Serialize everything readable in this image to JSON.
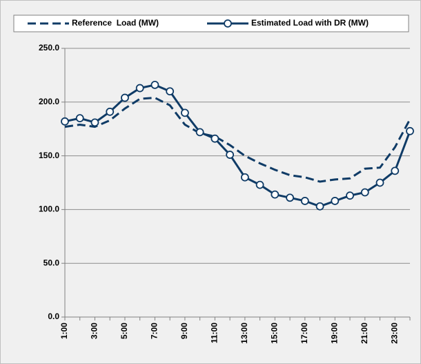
{
  "chart_data": {
    "type": "line",
    "categories": [
      "1:00",
      null,
      "3:00",
      null,
      "5:00",
      null,
      "7:00",
      null,
      "9:00",
      null,
      "11:00",
      null,
      "13:00",
      null,
      "15:00",
      null,
      "17:00",
      null,
      "19:00",
      null,
      "21:00",
      null,
      "23:00",
      null
    ],
    "series": [
      {
        "name": "Reference  Load (MW)",
        "color": "#0f3b66",
        "style": "dashed",
        "marker": "none",
        "values": [
          177,
          179,
          177,
          183,
          194,
          203,
          204,
          197,
          179,
          171,
          168,
          160,
          150,
          143,
          137,
          132,
          130,
          126,
          128,
          129,
          138,
          139,
          158,
          184
        ]
      },
      {
        "name": "Estimated Load with DR (MW)",
        "color": "#0f3b66",
        "style": "solid",
        "marker": "circle",
        "values": [
          182,
          185,
          181,
          191,
          204,
          213,
          216,
          210,
          190,
          172,
          166,
          151,
          130,
          123,
          114,
          111,
          108,
          103,
          108,
          113,
          116,
          125,
          136,
          173
        ]
      }
    ],
    "ylim": [
      0,
      250
    ],
    "yticks": [
      {
        "value": 0,
        "label": "0.0"
      },
      {
        "value": 50,
        "label": "50.0"
      },
      {
        "value": 100,
        "label": "100.0"
      },
      {
        "value": 150,
        "label": "150.0"
      },
      {
        "value": 200,
        "label": "200.0"
      },
      {
        "value": 250,
        "label": "250.0"
      }
    ],
    "grid": true,
    "legend": "top"
  }
}
